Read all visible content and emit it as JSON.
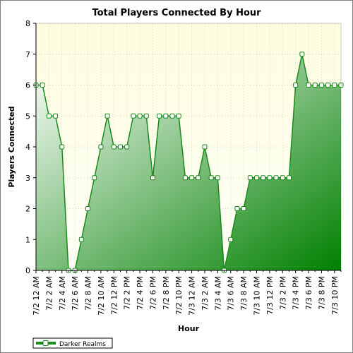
{
  "chart_data": {
    "type": "area",
    "title": "Total Players Connected By Hour",
    "xlabel": "Hour",
    "ylabel": "Players Connected",
    "ylim": [
      0,
      8
    ],
    "yticks": [
      0,
      1,
      2,
      3,
      4,
      5,
      6,
      7,
      8
    ],
    "grid": true,
    "legend_position": "bottom-left",
    "x_tick_labels": [
      "7/2 12 AM",
      "7/2 2 AM",
      "7/2 4 AM",
      "7/2 6 AM",
      "7/2 8 AM",
      "7/2 10 AM",
      "7/2 12 PM",
      "7/2 2 PM",
      "7/2 4 PM",
      "7/2 6 PM",
      "7/2 8 PM",
      "7/2 10 PM",
      "7/3 12 AM",
      "7/3 2 AM",
      "7/3 4 AM",
      "7/3 6 AM",
      "7/3 8 AM",
      "7/3 10 AM",
      "7/3 12 PM",
      "7/3 2 PM",
      "7/3 4 PM",
      "7/3 6 PM",
      "7/3 8 PM",
      "7/3 10 PM"
    ],
    "series": [
      {
        "name": "Darker Realms",
        "color": "#008000",
        "values": [
          6,
          6,
          5,
          5,
          4,
          0,
          0,
          1,
          2,
          3,
          4,
          5,
          4,
          4,
          4,
          5,
          5,
          5,
          3,
          5,
          5,
          5,
          5,
          3,
          3,
          3,
          4,
          3,
          3,
          0,
          1,
          2,
          2,
          3,
          3,
          3,
          3,
          3,
          3,
          3,
          6,
          7,
          6,
          6,
          6,
          6,
          6,
          6
        ]
      }
    ]
  },
  "colors": {
    "plot_bg_top": "#fdfde0",
    "plot_bg_bottom": "#fffff7",
    "area_light": "#ffffff",
    "area_dark": "#008000",
    "line": "#1a8a1a",
    "grid": "#d8d8c0"
  }
}
